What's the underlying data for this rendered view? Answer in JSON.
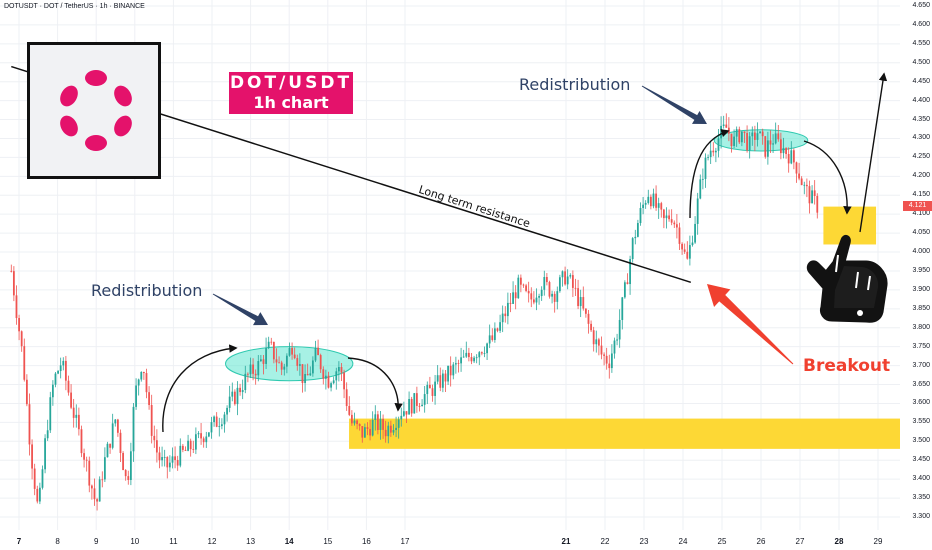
{
  "header": {
    "symbol_line": "DOTUSDT · DOT / TetherUS · 1h · BINANCE"
  },
  "pair_label": {
    "line1": "DOT/USDT",
    "line2": "1h chart"
  },
  "annotations": {
    "redistribution_left": "Redistribution",
    "redistribution_right": "Redistribution",
    "resistance": "Long term resistance",
    "breakout": "Breakout"
  },
  "last_price": "4.121",
  "colors": {
    "up": "#26a69a",
    "down": "#ef5350",
    "zone": "#fdd835",
    "ellipse": "#5ee6d0",
    "brand": "#e4126b",
    "arrow_blue": "#2f4266",
    "arrow_red": "#f0402f"
  },
  "icons": {
    "logo": "polkadot-logo",
    "hand": "pointing-hand-icon"
  },
  "chart_data": {
    "type": "candlestick",
    "timeframe": "1h",
    "y_axis_ticks": [
      "4.650",
      "4.600",
      "4.550",
      "4.500",
      "4.450",
      "4.400",
      "4.350",
      "4.300",
      "4.250",
      "4.200",
      "4.150",
      "4.100",
      "4.050",
      "4.000",
      "3.950",
      "3.900",
      "3.850",
      "3.800",
      "3.750",
      "3.700",
      "3.650",
      "3.600",
      "3.550",
      "3.500",
      "3.450",
      "3.400",
      "3.350",
      "3.300"
    ],
    "x_axis_ticks": [
      {
        "label": "7",
        "day": 7,
        "bold": true
      },
      {
        "label": "8",
        "day": 8,
        "bold": false
      },
      {
        "label": "9",
        "day": 9,
        "bold": false
      },
      {
        "label": "10",
        "day": 10,
        "bold": false
      },
      {
        "label": "11",
        "day": 11,
        "bold": false
      },
      {
        "label": "12",
        "day": 12,
        "bold": false
      },
      {
        "label": "13",
        "day": 13,
        "bold": false
      },
      {
        "label": "14",
        "day": 14,
        "bold": true
      },
      {
        "label": "15",
        "day": 15,
        "bold": false
      },
      {
        "label": "16",
        "day": 16,
        "bold": false
      },
      {
        "label": "17",
        "day": 17,
        "bold": false
      },
      {
        "label": "21",
        "day": 21,
        "bold": true
      },
      {
        "label": "22",
        "day": 22,
        "bold": false
      },
      {
        "label": "23",
        "day": 23,
        "bold": false
      },
      {
        "label": "24",
        "day": 24,
        "bold": false
      },
      {
        "label": "25",
        "day": 25,
        "bold": false
      },
      {
        "label": "26",
        "day": 26,
        "bold": false
      },
      {
        "label": "27",
        "day": 27,
        "bold": false
      },
      {
        "label": "28",
        "day": 28,
        "bold": true
      },
      {
        "label": "29",
        "day": 29,
        "bold": false
      }
    ],
    "ylim": [
      3.27,
      4.66
    ],
    "price_path": [
      [
        6.8,
        3.95
      ],
      [
        7.1,
        3.72
      ],
      [
        7.3,
        3.48
      ],
      [
        7.5,
        3.31
      ],
      [
        7.7,
        3.52
      ],
      [
        7.9,
        3.66
      ],
      [
        8.1,
        3.71
      ],
      [
        8.4,
        3.58
      ],
      [
        8.7,
        3.46
      ],
      [
        9.0,
        3.33
      ],
      [
        9.2,
        3.44
      ],
      [
        9.5,
        3.56
      ],
      [
        9.8,
        3.38
      ],
      [
        10.0,
        3.62
      ],
      [
        10.2,
        3.72
      ],
      [
        10.4,
        3.55
      ],
      [
        10.6,
        3.46
      ],
      [
        10.8,
        3.43
      ],
      [
        11.0,
        3.45
      ],
      [
        11.4,
        3.48
      ],
      [
        11.8,
        3.52
      ],
      [
        12.2,
        3.56
      ],
      [
        12.6,
        3.62
      ],
      [
        12.9,
        3.67
      ],
      [
        13.2,
        3.7
      ],
      [
        13.5,
        3.75
      ],
      [
        13.8,
        3.69
      ],
      [
        14.1,
        3.76
      ],
      [
        14.4,
        3.65
      ],
      [
        14.7,
        3.73
      ],
      [
        15.0,
        3.66
      ],
      [
        15.3,
        3.7
      ],
      [
        15.6,
        3.55
      ],
      [
        15.9,
        3.52
      ],
      [
        16.2,
        3.55
      ],
      [
        16.5,
        3.53
      ],
      [
        16.7,
        3.55
      ],
      [
        16.9,
        3.58
      ],
      [
        17.2,
        3.6
      ],
      [
        17.6,
        3.63
      ],
      [
        18.0,
        3.67
      ],
      [
        18.4,
        3.71
      ],
      [
        18.8,
        3.74
      ],
      [
        19.2,
        3.77
      ],
      [
        19.5,
        3.84
      ],
      [
        19.8,
        3.91
      ],
      [
        20.1,
        3.87
      ],
      [
        20.4,
        3.92
      ],
      [
        20.7,
        3.89
      ],
      [
        21.0,
        3.94
      ],
      [
        21.3,
        3.88
      ],
      [
        21.6,
        3.8
      ],
      [
        21.9,
        3.73
      ],
      [
        22.1,
        3.71
      ],
      [
        22.3,
        3.78
      ],
      [
        22.5,
        3.89
      ],
      [
        22.7,
        4.02
      ],
      [
        22.9,
        4.1
      ],
      [
        23.1,
        4.16
      ],
      [
        23.3,
        4.12
      ],
      [
        23.5,
        4.08
      ],
      [
        23.7,
        4.1
      ],
      [
        23.9,
        4.05
      ],
      [
        24.1,
        3.97
      ],
      [
        24.3,
        4.08
      ],
      [
        24.5,
        4.21
      ],
      [
        24.7,
        4.27
      ],
      [
        24.9,
        4.3
      ],
      [
        25.1,
        4.33
      ],
      [
        25.3,
        4.29
      ],
      [
        25.5,
        4.32
      ],
      [
        25.7,
        4.28
      ],
      [
        25.9,
        4.32
      ],
      [
        26.1,
        4.27
      ],
      [
        26.3,
        4.3
      ],
      [
        26.5,
        4.28
      ],
      [
        26.7,
        4.26
      ],
      [
        26.9,
        4.23
      ],
      [
        27.1,
        4.17
      ],
      [
        27.3,
        4.14
      ],
      [
        27.45,
        4.121
      ]
    ],
    "zones": [
      {
        "type": "support",
        "from_day": 15.55,
        "to_day": 30.5,
        "low": 3.48,
        "high": 3.56
      },
      {
        "type": "target",
        "from_day": 27.6,
        "to_day": 28.95,
        "low": 4.02,
        "high": 4.12
      }
    ],
    "resistance_line": {
      "from": [
        6.8,
        4.49
      ],
      "to": [
        24.2,
        3.92
      ]
    },
    "distribution_ellipses": [
      {
        "center_day": 14.0,
        "center_price": 3.705,
        "rx_days": 1.65,
        "ry_price": 0.045
      },
      {
        "center_day": 26.0,
        "center_price": 4.295,
        "rx_days": 1.2,
        "ry_price": 0.028
      }
    ]
  }
}
